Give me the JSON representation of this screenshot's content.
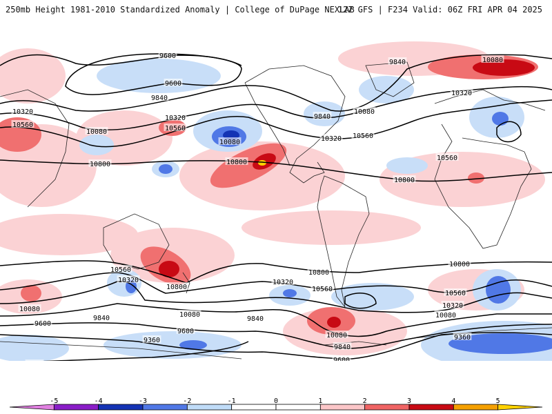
{
  "header": {
    "title_left": "250mb Height 1981-2010 Standardized Anomaly | College of DuPage NEXLAB",
    "title_right": "12Z GFS | F234 Valid: 06Z FRI APR 04 2025"
  },
  "contour_labels": [
    {
      "text": "9600",
      "pos": [
        243,
        80
      ]
    },
    {
      "text": "9600",
      "pos": [
        251,
        120
      ]
    },
    {
      "text": "9840",
      "pos": [
        231,
        141
      ]
    },
    {
      "text": "10320",
      "pos": [
        33,
        161
      ]
    },
    {
      "text": "10560",
      "pos": [
        33,
        180
      ]
    },
    {
      "text": "10080",
      "pos": [
        140,
        190
      ]
    },
    {
      "text": "10320",
      "pos": [
        254,
        170
      ]
    },
    {
      "text": "10560",
      "pos": [
        254,
        185
      ]
    },
    {
      "text": "10080",
      "pos": [
        333,
        205
      ]
    },
    {
      "text": "10800",
      "pos": [
        145,
        237
      ]
    },
    {
      "text": "10800",
      "pos": [
        343,
        234
      ]
    },
    {
      "text": "9840",
      "pos": [
        467,
        168
      ]
    },
    {
      "text": "10080",
      "pos": [
        528,
        161
      ]
    },
    {
      "text": "10320",
      "pos": [
        480,
        200
      ]
    },
    {
      "text": "10560",
      "pos": [
        526,
        196
      ]
    },
    {
      "text": "9840",
      "pos": [
        576,
        89
      ]
    },
    {
      "text": "10080",
      "pos": [
        714,
        86
      ]
    },
    {
      "text": "10320",
      "pos": [
        669,
        134
      ]
    },
    {
      "text": "10560",
      "pos": [
        648,
        228
      ]
    },
    {
      "text": "10800",
      "pos": [
        586,
        260
      ]
    },
    {
      "text": "10800",
      "pos": [
        666,
        382
      ]
    },
    {
      "text": "10800",
      "pos": [
        462,
        394
      ]
    },
    {
      "text": "10560",
      "pos": [
        175,
        390
      ]
    },
    {
      "text": "10320",
      "pos": [
        186,
        405
      ]
    },
    {
      "text": "10800",
      "pos": [
        256,
        415
      ]
    },
    {
      "text": "10320",
      "pos": [
        410,
        408
      ]
    },
    {
      "text": "10560",
      "pos": [
        467,
        418
      ]
    },
    {
      "text": "10560",
      "pos": [
        660,
        424
      ]
    },
    {
      "text": "10320",
      "pos": [
        656,
        442
      ]
    },
    {
      "text": "10080",
      "pos": [
        646,
        456
      ]
    },
    {
      "text": "10080",
      "pos": [
        43,
        447
      ]
    },
    {
      "text": "10080",
      "pos": [
        275,
        455
      ]
    },
    {
      "text": "9840",
      "pos": [
        147,
        460
      ]
    },
    {
      "text": "9840",
      "pos": [
        370,
        461
      ]
    },
    {
      "text": "10080",
      "pos": [
        488,
        485
      ]
    },
    {
      "text": "9840",
      "pos": [
        496,
        502
      ]
    },
    {
      "text": "9600",
      "pos": [
        62,
        468
      ]
    },
    {
      "text": "9600",
      "pos": [
        269,
        479
      ]
    },
    {
      "text": "9600",
      "pos": [
        495,
        521
      ]
    },
    {
      "text": "9360",
      "pos": [
        220,
        492
      ]
    },
    {
      "text": "9360",
      "pos": [
        670,
        488
      ]
    },
    {
      "text": "9360",
      "pos": [
        50,
        527
      ]
    }
  ],
  "colorbar": {
    "tick_labels": [
      "-5",
      "-4",
      "-3",
      "-2",
      "-1",
      "0",
      "1",
      "2",
      "3",
      "4",
      "5"
    ],
    "colors": [
      "#e080e0",
      "#8a1ec8",
      "#1433b4",
      "#5078e6",
      "#c0dcf8",
      "#ffffff",
      "#ffffff",
      "#fbc6c8",
      "#f06464",
      "#c80a14",
      "#f5a000",
      "#ffd200"
    ]
  }
}
